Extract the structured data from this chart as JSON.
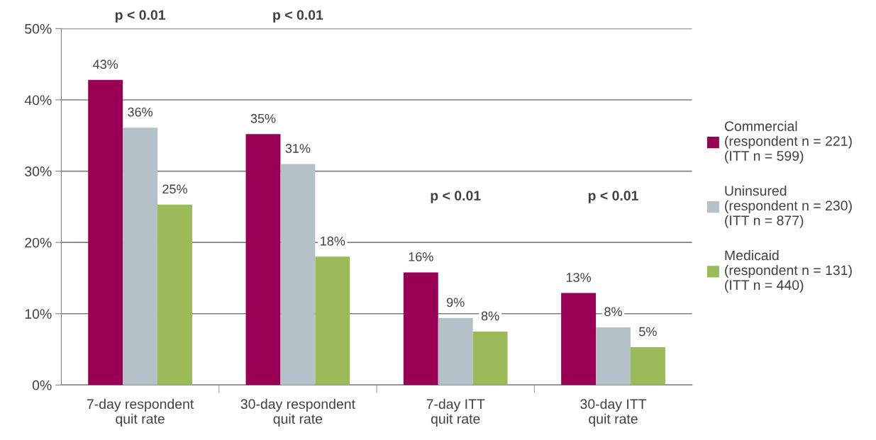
{
  "chart_data": {
    "type": "bar",
    "categories": [
      "7-day respondent\nquit rate",
      "30-day respondent\nquit rate",
      "7-day ITT\nquit rate",
      "30-day ITT\nquit rate"
    ],
    "series": [
      {
        "name": "Commercial\n(respondent n = 221)\n(ITT n = 599)",
        "color": "#990055",
        "values": [
          42.8,
          35.2,
          15.8,
          12.9
        ],
        "value_labels": [
          "43%",
          "35%",
          "16%",
          "13%"
        ]
      },
      {
        "name": "Uninsured\n(respondent n = 230)\n(ITT n = 877)",
        "color": "#b4c1c8",
        "values": [
          36.1,
          31.0,
          9.4,
          8.1
        ],
        "value_labels": [
          "36%",
          "31%",
          "9%",
          "8%"
        ]
      },
      {
        "name": "Medicaid\n(respondent n = 131)\n(ITT n = 440)",
        "color": "#9bbb59",
        "values": [
          25.3,
          18.0,
          7.5,
          5.3
        ],
        "value_labels": [
          "25%",
          "18%",
          "8%",
          "5%"
        ]
      }
    ],
    "ylim": [
      0,
      50
    ],
    "yticks": [
      {
        "value": 0,
        "label": "0%"
      },
      {
        "value": 10,
        "label": "10%"
      },
      {
        "value": 20,
        "label": "20%"
      },
      {
        "value": 30,
        "label": "30%"
      },
      {
        "value": 40,
        "label": "40%"
      },
      {
        "value": 50,
        "label": "50%"
      }
    ],
    "grid": "y",
    "legend": "right",
    "annotations": [
      "p < 0.01",
      "p < 0.01",
      "p < 0.01",
      "p < 0.01"
    ]
  }
}
